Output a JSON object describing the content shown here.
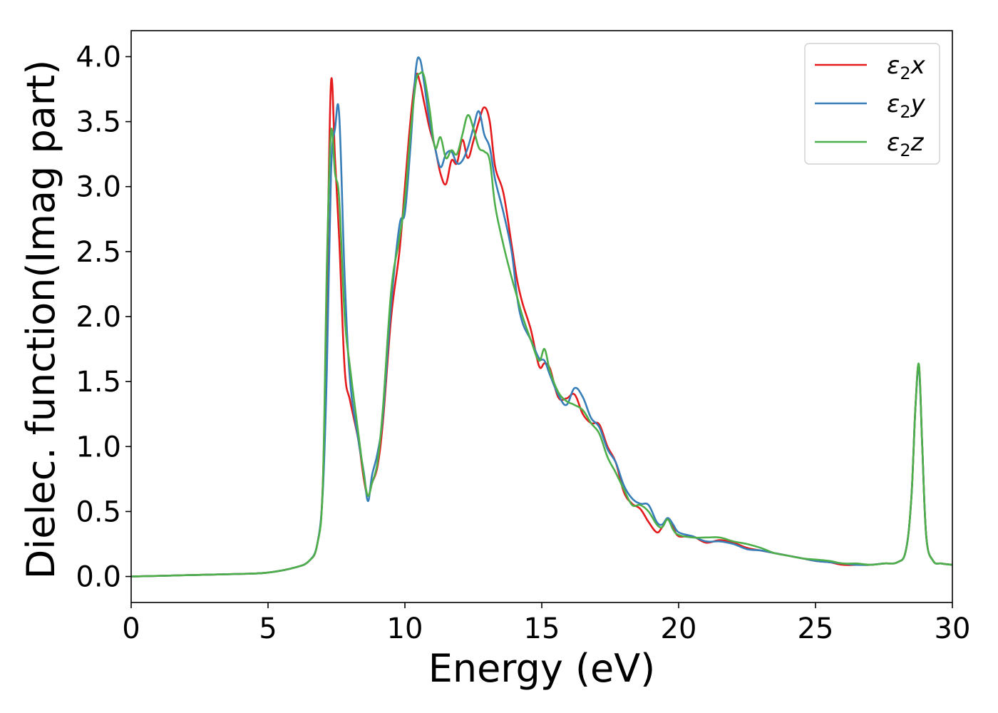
{
  "chart_data": {
    "type": "line",
    "xlabel": "Energy (eV)",
    "ylabel": "Dielec. function(Imag part)",
    "xlim": [
      0,
      30
    ],
    "ylim": [
      -0.2,
      4.2
    ],
    "xticks": [
      0,
      5,
      10,
      15,
      20,
      25,
      30
    ],
    "xtick_labels": [
      "0",
      "5",
      "10",
      "15",
      "20",
      "25",
      "30"
    ],
    "yticks": [
      0.0,
      0.5,
      1.0,
      1.5,
      2.0,
      2.5,
      3.0,
      3.5,
      4.0
    ],
    "ytick_labels": [
      "0.0",
      "0.5",
      "1.0",
      "1.5",
      "2.0",
      "2.5",
      "3.0",
      "3.5",
      "4.0"
    ],
    "grid": false,
    "legend": "top-right",
    "series": [
      {
        "name": "ε2x",
        "legend_base": "ε",
        "legend_sub": "2",
        "legend_tail": "x",
        "color": "#e41a1c",
        "x": [
          0,
          2,
          4,
          5,
          6,
          6.5,
          6.8,
          7.0,
          7.15,
          7.3,
          7.45,
          7.6,
          7.8,
          8.0,
          8.3,
          8.5,
          8.65,
          8.8,
          9.0,
          9.2,
          9.5,
          9.8,
          10.0,
          10.2,
          10.4,
          10.55,
          10.7,
          10.9,
          11.1,
          11.3,
          11.5,
          11.7,
          11.9,
          12.1,
          12.3,
          12.5,
          12.7,
          12.9,
          13.1,
          13.3,
          13.6,
          13.9,
          14.1,
          14.3,
          14.6,
          14.9,
          15.1,
          15.3,
          15.6,
          15.9,
          16.2,
          16.5,
          16.8,
          17.1,
          17.4,
          17.7,
          18.0,
          18.3,
          18.6,
          18.9,
          19.2,
          19.4,
          19.6,
          19.8,
          20.0,
          20.5,
          21.0,
          21.5,
          22.0,
          22.5,
          23.0,
          23.5,
          24.0,
          24.5,
          25.0,
          25.5,
          26.0,
          26.5,
          27.0,
          27.5,
          28.0,
          28.3,
          28.5,
          28.65,
          28.78,
          28.9,
          29.05,
          29.3,
          29.6,
          30.0
        ],
        "y": [
          0.0,
          0.01,
          0.02,
          0.03,
          0.07,
          0.12,
          0.25,
          0.7,
          2.2,
          3.8,
          3.2,
          2.6,
          1.6,
          1.35,
          1.05,
          0.75,
          0.62,
          0.72,
          0.85,
          1.2,
          2.0,
          2.5,
          3.0,
          3.5,
          3.85,
          3.8,
          3.65,
          3.45,
          3.3,
          3.1,
          3.02,
          3.2,
          3.18,
          3.36,
          3.22,
          3.35,
          3.5,
          3.61,
          3.5,
          3.15,
          2.95,
          2.55,
          2.28,
          2.1,
          1.9,
          1.62,
          1.64,
          1.6,
          1.38,
          1.37,
          1.4,
          1.25,
          1.18,
          1.17,
          1.0,
          0.88,
          0.65,
          0.56,
          0.52,
          0.42,
          0.34,
          0.38,
          0.44,
          0.38,
          0.31,
          0.31,
          0.26,
          0.28,
          0.26,
          0.22,
          0.2,
          0.18,
          0.16,
          0.14,
          0.12,
          0.11,
          0.09,
          0.09,
          0.09,
          0.1,
          0.11,
          0.2,
          0.6,
          1.3,
          1.62,
          1.0,
          0.3,
          0.12,
          0.1,
          0.09
        ]
      },
      {
        "name": "ε2y",
        "legend_base": "ε",
        "legend_sub": "2",
        "legend_tail": "y",
        "color": "#377eb8",
        "x": [
          0,
          2,
          4,
          5,
          6,
          6.5,
          6.8,
          7.0,
          7.15,
          7.3,
          7.45,
          7.6,
          7.8,
          8.0,
          8.3,
          8.5,
          8.65,
          8.8,
          9.0,
          9.2,
          9.5,
          9.8,
          10.0,
          10.2,
          10.4,
          10.55,
          10.7,
          10.9,
          11.1,
          11.3,
          11.5,
          11.7,
          11.9,
          12.1,
          12.3,
          12.5,
          12.7,
          12.9,
          13.1,
          13.3,
          13.6,
          13.9,
          14.1,
          14.3,
          14.6,
          14.9,
          15.1,
          15.3,
          15.6,
          15.9,
          16.2,
          16.5,
          16.8,
          17.1,
          17.4,
          17.7,
          18.0,
          18.3,
          18.6,
          18.9,
          19.2,
          19.4,
          19.6,
          19.8,
          20.0,
          20.5,
          21.0,
          21.5,
          22.0,
          22.5,
          23.0,
          23.5,
          24.0,
          24.5,
          25.0,
          25.5,
          26.0,
          26.5,
          27.0,
          27.5,
          28.0,
          28.3,
          28.5,
          28.65,
          28.78,
          28.9,
          29.05,
          29.3,
          29.6,
          30.0
        ],
        "y": [
          0.0,
          0.01,
          0.02,
          0.03,
          0.07,
          0.12,
          0.25,
          0.65,
          1.6,
          3.1,
          3.45,
          3.55,
          2.3,
          1.5,
          1.05,
          0.8,
          0.58,
          0.78,
          0.95,
          1.25,
          2.1,
          2.7,
          2.8,
          3.3,
          3.9,
          3.98,
          3.8,
          3.5,
          3.3,
          3.15,
          3.25,
          3.27,
          3.18,
          3.2,
          3.3,
          3.45,
          3.58,
          3.4,
          3.3,
          3.05,
          2.8,
          2.5,
          2.15,
          1.95,
          1.82,
          1.68,
          1.66,
          1.55,
          1.4,
          1.32,
          1.45,
          1.38,
          1.22,
          1.15,
          0.98,
          0.88,
          0.7,
          0.6,
          0.56,
          0.55,
          0.42,
          0.4,
          0.45,
          0.4,
          0.34,
          0.31,
          0.27,
          0.27,
          0.25,
          0.21,
          0.2,
          0.18,
          0.16,
          0.14,
          0.12,
          0.11,
          0.1,
          0.09,
          0.09,
          0.1,
          0.11,
          0.2,
          0.6,
          1.3,
          1.6,
          1.0,
          0.3,
          0.12,
          0.1,
          0.09
        ]
      },
      {
        "name": "ε2z",
        "legend_base": "ε",
        "legend_sub": "2",
        "legend_tail": "z",
        "color": "#4daf4a",
        "x": [
          0,
          2,
          4,
          5,
          6,
          6.5,
          6.8,
          7.0,
          7.15,
          7.3,
          7.45,
          7.6,
          7.8,
          8.0,
          8.3,
          8.5,
          8.65,
          8.8,
          9.0,
          9.2,
          9.5,
          9.8,
          10.0,
          10.2,
          10.4,
          10.55,
          10.7,
          10.9,
          11.1,
          11.3,
          11.5,
          11.7,
          11.9,
          12.1,
          12.3,
          12.5,
          12.7,
          12.9,
          13.1,
          13.3,
          13.6,
          13.9,
          14.1,
          14.3,
          14.6,
          14.9,
          15.1,
          15.3,
          15.6,
          15.9,
          16.2,
          16.5,
          16.8,
          17.1,
          17.4,
          17.7,
          18.0,
          18.3,
          18.6,
          18.9,
          19.2,
          19.4,
          19.6,
          19.8,
          20.0,
          20.5,
          21.0,
          21.5,
          22.0,
          22.5,
          23.0,
          23.5,
          24.0,
          24.5,
          25.0,
          25.5,
          26.0,
          26.5,
          27.0,
          27.5,
          28.0,
          28.3,
          28.5,
          28.65,
          28.78,
          28.9,
          29.05,
          29.3,
          29.6,
          30.0
        ],
        "y": [
          0.0,
          0.01,
          0.02,
          0.03,
          0.07,
          0.12,
          0.25,
          0.7,
          2.4,
          3.42,
          3.1,
          2.9,
          2.0,
          1.6,
          1.1,
          0.78,
          0.62,
          0.72,
          0.88,
          1.3,
          2.2,
          2.6,
          2.9,
          3.4,
          3.8,
          3.87,
          3.85,
          3.6,
          3.3,
          3.38,
          3.22,
          3.28,
          3.25,
          3.4,
          3.55,
          3.45,
          3.3,
          3.27,
          3.2,
          2.85,
          2.55,
          2.3,
          2.15,
          2.0,
          1.82,
          1.66,
          1.75,
          1.58,
          1.42,
          1.35,
          1.32,
          1.28,
          1.18,
          1.1,
          0.92,
          0.8,
          0.67,
          0.55,
          0.55,
          0.5,
          0.4,
          0.38,
          0.44,
          0.36,
          0.32,
          0.3,
          0.3,
          0.3,
          0.27,
          0.25,
          0.22,
          0.18,
          0.16,
          0.14,
          0.13,
          0.12,
          0.1,
          0.1,
          0.09,
          0.1,
          0.11,
          0.2,
          0.6,
          1.3,
          1.63,
          1.0,
          0.3,
          0.12,
          0.1,
          0.09
        ]
      }
    ]
  }
}
